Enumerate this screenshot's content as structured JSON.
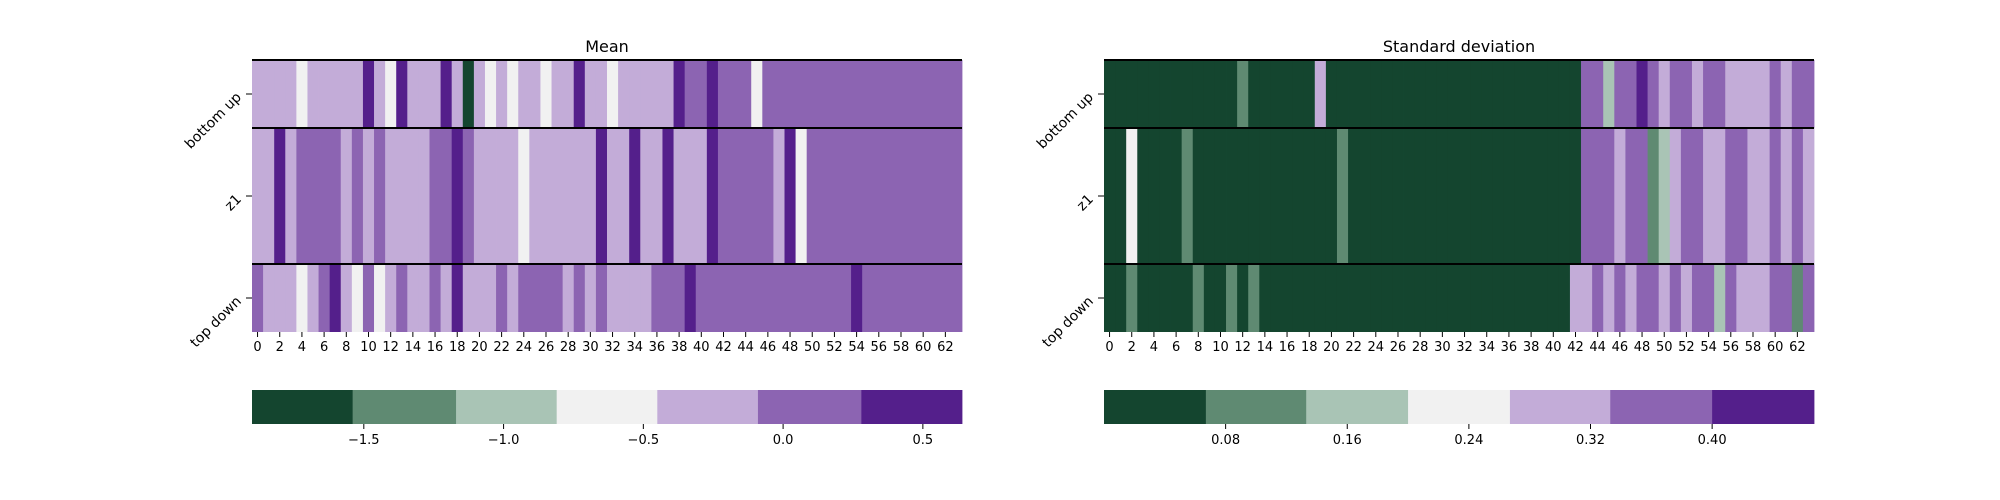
{
  "chart_data": [
    {
      "type": "heatmap",
      "title": "Mean",
      "rows": [
        "bottom up",
        "z1",
        "top down"
      ],
      "x": [
        0,
        1,
        2,
        3,
        4,
        5,
        6,
        7,
        8,
        9,
        10,
        11,
        12,
        13,
        14,
        15,
        16,
        17,
        18,
        19,
        20,
        21,
        22,
        23,
        24,
        25,
        26,
        27,
        28,
        29,
        30,
        31,
        32,
        33,
        34,
        35,
        36,
        37,
        38,
        39,
        40,
        41,
        42,
        43,
        44,
        45,
        46,
        47,
        48,
        49,
        50,
        51,
        52,
        53,
        54,
        55,
        56,
        57,
        58,
        59,
        60,
        61,
        62,
        63
      ],
      "x_tick_labels": [
        "0",
        "2",
        "4",
        "6",
        "8",
        "10",
        "12",
        "14",
        "16",
        "18",
        "20",
        "22",
        "24",
        "26",
        "28",
        "30",
        "32",
        "34",
        "36",
        "38",
        "40",
        "42",
        "44",
        "46",
        "48",
        "50",
        "52",
        "54",
        "56",
        "58",
        "60",
        "62"
      ],
      "values": [
        [
          -0.2,
          -0.2,
          -0.2,
          -0.2,
          -0.6,
          -0.2,
          -0.2,
          -0.2,
          -0.2,
          -0.2,
          0.4,
          -0.2,
          -0.6,
          0.4,
          -0.2,
          -0.2,
          -0.2,
          0.4,
          -0.2,
          -1.7,
          -0.2,
          -0.6,
          -0.2,
          -0.6,
          -0.2,
          -0.2,
          -0.6,
          -0.2,
          -0.2,
          0.4,
          -0.2,
          -0.2,
          -0.6,
          -0.2,
          -0.2,
          -0.2,
          -0.2,
          -0.2,
          0.4,
          0.0,
          0.0,
          0.4,
          0.0,
          0.0,
          0.0,
          -0.6,
          0.0,
          0.0,
          0.0,
          0.0,
          0.0,
          0.0,
          0.0,
          0.0,
          0.0,
          0.0,
          0.0,
          0.0,
          0.0,
          0.0,
          0.0,
          0.0,
          0.0,
          0.0
        ],
        [
          -0.2,
          -0.2,
          0.4,
          -0.2,
          0.0,
          0.0,
          0.0,
          0.0,
          -0.2,
          0.0,
          -0.2,
          0.0,
          -0.2,
          -0.2,
          -0.2,
          -0.2,
          0.0,
          0.0,
          0.4,
          0.0,
          -0.2,
          -0.2,
          -0.2,
          -0.2,
          -0.6,
          -0.2,
          -0.2,
          -0.2,
          -0.2,
          -0.2,
          -0.2,
          0.4,
          -0.2,
          -0.2,
          0.4,
          -0.2,
          -0.2,
          0.4,
          -0.2,
          -0.2,
          -0.2,
          0.4,
          0.0,
          0.0,
          0.0,
          0.0,
          0.0,
          -0.2,
          0.4,
          -0.6,
          0.0,
          0.0,
          0.0,
          0.0,
          0.0,
          0.0,
          0.0,
          0.0,
          0.0,
          0.0,
          0.0,
          0.0,
          0.0,
          0.0
        ],
        [
          0.0,
          -0.2,
          -0.2,
          -0.2,
          -0.6,
          -0.2,
          0.0,
          0.4,
          -0.2,
          -0.6,
          0.0,
          -0.6,
          -0.2,
          0.0,
          -0.2,
          -0.2,
          0.0,
          -0.2,
          0.4,
          -0.2,
          -0.2,
          -0.2,
          0.0,
          -0.2,
          0.0,
          0.0,
          0.0,
          0.0,
          -0.2,
          0.0,
          -0.2,
          0.0,
          -0.2,
          -0.2,
          -0.2,
          -0.2,
          0.0,
          0.0,
          0.0,
          0.4,
          0.0,
          0.0,
          0.0,
          0.0,
          0.0,
          0.0,
          0.0,
          0.0,
          0.0,
          0.0,
          0.0,
          0.0,
          0.0,
          0.0,
          0.4,
          0.0,
          0.0,
          0.0,
          0.0,
          0.0,
          0.0,
          0.0,
          0.0,
          0.0
        ]
      ],
      "colorbar": {
        "boundaries": [
          -1.9,
          -1.54,
          -1.17,
          -0.81,
          -0.45,
          -0.09,
          0.28,
          0.64
        ],
        "tick_values": [
          -1.5,
          -1.0,
          -0.5,
          0.0,
          0.5
        ],
        "tick_labels": [
          "−1.5",
          "−1.0",
          "−0.5",
          "0.0",
          "0.5"
        ],
        "colors": [
          "#14452f",
          "#5f8a72",
          "#a9c4b5",
          "#f1f1f1",
          "#c3acd8",
          "#8c64b2",
          "#541f8b"
        ]
      },
      "grid": false
    },
    {
      "type": "heatmap",
      "title": "Standard deviation",
      "rows": [
        "bottom up",
        "z1",
        "top down"
      ],
      "x": [
        0,
        1,
        2,
        3,
        4,
        5,
        6,
        7,
        8,
        9,
        10,
        11,
        12,
        13,
        14,
        15,
        16,
        17,
        18,
        19,
        20,
        21,
        22,
        23,
        24,
        25,
        26,
        27,
        28,
        29,
        30,
        31,
        32,
        33,
        34,
        35,
        36,
        37,
        38,
        39,
        40,
        41,
        42,
        43,
        44,
        45,
        46,
        47,
        48,
        49,
        50,
        51,
        52,
        53,
        54,
        55,
        56,
        57,
        58,
        59,
        60,
        61,
        62,
        63
      ],
      "x_tick_labels": [
        "0",
        "2",
        "4",
        "6",
        "8",
        "10",
        "12",
        "14",
        "16",
        "18",
        "20",
        "22",
        "24",
        "26",
        "28",
        "30",
        "32",
        "34",
        "36",
        "38",
        "40",
        "42",
        "44",
        "46",
        "48",
        "50",
        "52",
        "54",
        "56",
        "58",
        "60",
        "62"
      ],
      "values": [
        [
          0.01,
          0.01,
          0.01,
          0.01,
          0.01,
          0.01,
          0.01,
          0.01,
          0.01,
          0.01,
          0.01,
          0.01,
          0.1,
          0.01,
          0.01,
          0.01,
          0.01,
          0.01,
          0.01,
          0.3,
          0.01,
          0.01,
          0.01,
          0.01,
          0.01,
          0.01,
          0.01,
          0.01,
          0.01,
          0.01,
          0.01,
          0.01,
          0.01,
          0.01,
          0.01,
          0.01,
          0.01,
          0.01,
          0.01,
          0.01,
          0.01,
          0.01,
          0.01,
          0.37,
          0.37,
          0.17,
          0.37,
          0.37,
          0.43,
          0.37,
          0.3,
          0.37,
          0.37,
          0.3,
          0.37,
          0.37,
          0.3,
          0.3,
          0.3,
          0.3,
          0.37,
          0.3,
          0.37,
          0.37
        ],
        [
          0.01,
          0.01,
          0.21,
          0.01,
          0.01,
          0.01,
          0.01,
          0.1,
          0.01,
          0.01,
          0.01,
          0.01,
          0.01,
          0.01,
          0.01,
          0.01,
          0.01,
          0.01,
          0.01,
          0.01,
          0.01,
          0.1,
          0.01,
          0.01,
          0.01,
          0.01,
          0.01,
          0.01,
          0.01,
          0.01,
          0.01,
          0.01,
          0.01,
          0.01,
          0.01,
          0.01,
          0.01,
          0.01,
          0.01,
          0.01,
          0.01,
          0.01,
          0.01,
          0.37,
          0.37,
          0.37,
          0.3,
          0.37,
          0.37,
          0.1,
          0.17,
          0.3,
          0.37,
          0.37,
          0.3,
          0.3,
          0.37,
          0.37,
          0.3,
          0.3,
          0.37,
          0.3,
          0.37,
          0.3
        ],
        [
          0.01,
          0.01,
          0.1,
          0.01,
          0.01,
          0.01,
          0.01,
          0.01,
          0.1,
          0.01,
          0.01,
          0.1,
          0.01,
          0.1,
          0.01,
          0.01,
          0.01,
          0.01,
          0.01,
          0.01,
          0.01,
          0.01,
          0.01,
          0.01,
          0.01,
          0.01,
          0.01,
          0.01,
          0.01,
          0.01,
          0.01,
          0.01,
          0.01,
          0.01,
          0.01,
          0.01,
          0.01,
          0.01,
          0.01,
          0.01,
          0.01,
          0.01,
          0.3,
          0.3,
          0.37,
          0.3,
          0.37,
          0.3,
          0.37,
          0.37,
          0.3,
          0.37,
          0.3,
          0.37,
          0.37,
          0.17,
          0.37,
          0.3,
          0.3,
          0.3,
          0.37,
          0.37,
          0.1,
          0.37
        ]
      ],
      "colorbar": {
        "boundaries": [
          0.0,
          0.067,
          0.133,
          0.2,
          0.267,
          0.333,
          0.4,
          0.467
        ],
        "tick_values": [
          0.08,
          0.16,
          0.24,
          0.32,
          0.4
        ],
        "tick_labels": [
          "0.08",
          "0.16",
          "0.24",
          "0.32",
          "0.40"
        ],
        "colors": [
          "#14452f",
          "#5f8a72",
          "#a9c4b5",
          "#f1f1f1",
          "#c3acd8",
          "#8c64b2",
          "#541f8b"
        ]
      },
      "grid": false
    }
  ]
}
